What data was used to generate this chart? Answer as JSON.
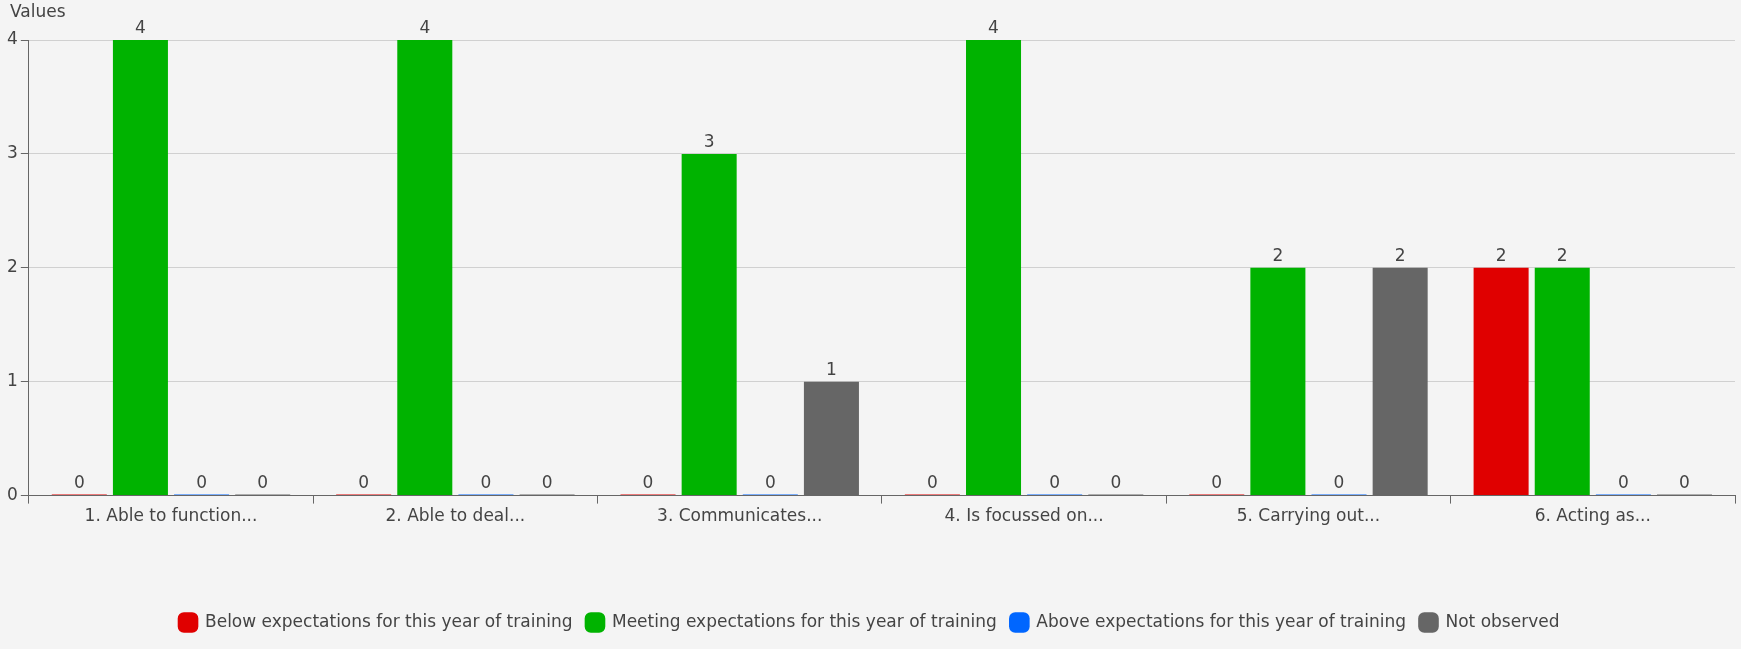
{
  "chart_data": {
    "type": "bar",
    "ylabel": "Values",
    "categories": [
      "1. Able to function...",
      "2. Able to deal...",
      "3. Communicates...",
      "4. Is focussed on...",
      "5. Carrying out...",
      "6. Acting as..."
    ],
    "series": [
      {
        "name": "Below expectations for this year of training",
        "color": "#e00000",
        "values": [
          0,
          0,
          0,
          0,
          0,
          2
        ]
      },
      {
        "name": "Meeting expectations for this year of training",
        "color": "#00b300",
        "values": [
          4,
          4,
          3,
          4,
          2,
          2
        ]
      },
      {
        "name": "Above expectations for this year of training",
        "color": "#0066ff",
        "values": [
          0,
          0,
          0,
          0,
          0,
          0
        ]
      },
      {
        "name": "Not observed",
        "color": "#666666",
        "values": [
          0,
          0,
          1,
          0,
          2,
          0
        ]
      }
    ],
    "ylim": [
      0,
      4
    ],
    "yticks": [
      0,
      1,
      2,
      3,
      4
    ],
    "grid": "y",
    "legend": "bottom",
    "data_labels": true
  }
}
